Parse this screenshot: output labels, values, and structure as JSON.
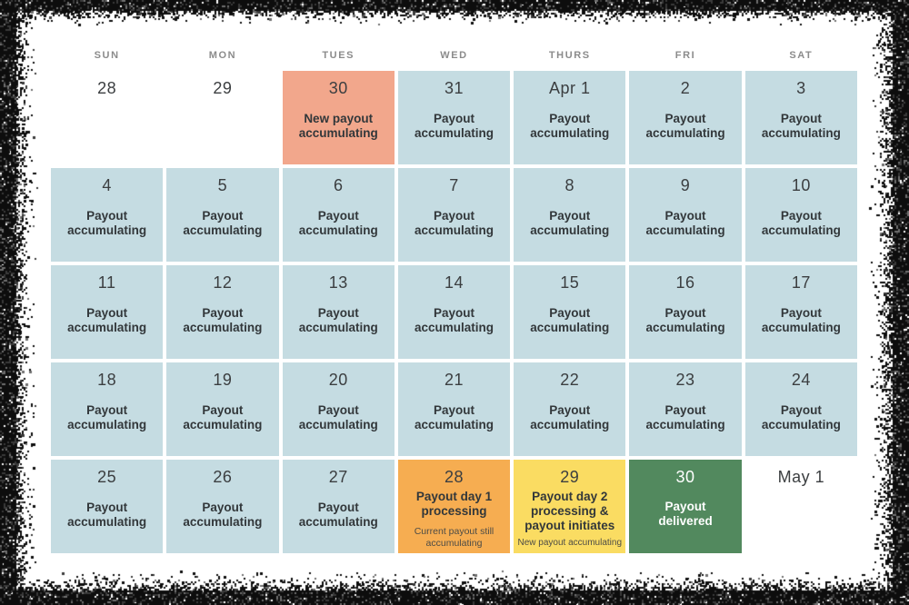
{
  "calendar": {
    "day_headers": [
      "SUN",
      "MON",
      "TUES",
      "WED",
      "THURS",
      "FRI",
      "SAT"
    ],
    "colors": {
      "blue": "#c5dce2",
      "salmon": "#f2a78c",
      "orange": "#f6ad51",
      "yellow": "#fadc62",
      "green": "#52895e",
      "plain": "#ffffff",
      "frame": "#0d0d0d",
      "header_text": "#8b8b8b",
      "day_text": "#3b3e40",
      "label_text": "#32373a"
    },
    "cells": [
      {
        "date": "28",
        "type": "plain"
      },
      {
        "date": "29",
        "type": "plain"
      },
      {
        "date": "30",
        "type": "salmon",
        "label": "New payout accumulating"
      },
      {
        "date": "31",
        "type": "blue",
        "label": "Payout accumulating"
      },
      {
        "date": "Apr 1",
        "type": "blue",
        "label": "Payout accumulating"
      },
      {
        "date": "2",
        "type": "blue",
        "label": "Payout accumulating"
      },
      {
        "date": "3",
        "type": "blue",
        "label": "Payout accumulating"
      },
      {
        "date": "4",
        "type": "blue",
        "label": "Payout accumulating"
      },
      {
        "date": "5",
        "type": "blue",
        "label": "Payout accumulating"
      },
      {
        "date": "6",
        "type": "blue",
        "label": "Payout accumulating"
      },
      {
        "date": "7",
        "type": "blue",
        "label": "Payout accumulating"
      },
      {
        "date": "8",
        "type": "blue",
        "label": "Payout accumulating"
      },
      {
        "date": "9",
        "type": "blue",
        "label": "Payout accumulating"
      },
      {
        "date": "10",
        "type": "blue",
        "label": "Payout accumulating"
      },
      {
        "date": "11",
        "type": "blue",
        "label": "Payout accumulating"
      },
      {
        "date": "12",
        "type": "blue",
        "label": "Payout accumulating"
      },
      {
        "date": "13",
        "type": "blue",
        "label": "Payout accumulating"
      },
      {
        "date": "14",
        "type": "blue",
        "label": "Payout accumulating"
      },
      {
        "date": "15",
        "type": "blue",
        "label": "Payout accumulating"
      },
      {
        "date": "16",
        "type": "blue",
        "label": "Payout accumulating"
      },
      {
        "date": "17",
        "type": "blue",
        "label": "Payout accumulating"
      },
      {
        "date": "18",
        "type": "blue",
        "label": "Payout accumulating"
      },
      {
        "date": "19",
        "type": "blue",
        "label": "Payout accumulating"
      },
      {
        "date": "20",
        "type": "blue",
        "label": "Payout accumulating"
      },
      {
        "date": "21",
        "type": "blue",
        "label": "Payout accumulating"
      },
      {
        "date": "22",
        "type": "blue",
        "label": "Payout accumulating"
      },
      {
        "date": "23",
        "type": "blue",
        "label": "Payout accumulating"
      },
      {
        "date": "24",
        "type": "blue",
        "label": "Payout accumulating"
      },
      {
        "date": "25",
        "type": "blue",
        "label": "Payout accumulating"
      },
      {
        "date": "26",
        "type": "blue",
        "label": "Payout accumulating"
      },
      {
        "date": "27",
        "type": "blue",
        "label": "Payout accumulating"
      },
      {
        "date": "28",
        "type": "orange",
        "label": "Payout day 1 processing",
        "sublabel": "Current payout still accumulating"
      },
      {
        "date": "29",
        "type": "yellow",
        "label": "Payout day 2 processing & payout initiates",
        "sublabel": "New payout accumulating"
      },
      {
        "date": "30",
        "type": "green",
        "label": "Payout delivered"
      },
      {
        "date": "May 1",
        "type": "plain"
      }
    ]
  }
}
